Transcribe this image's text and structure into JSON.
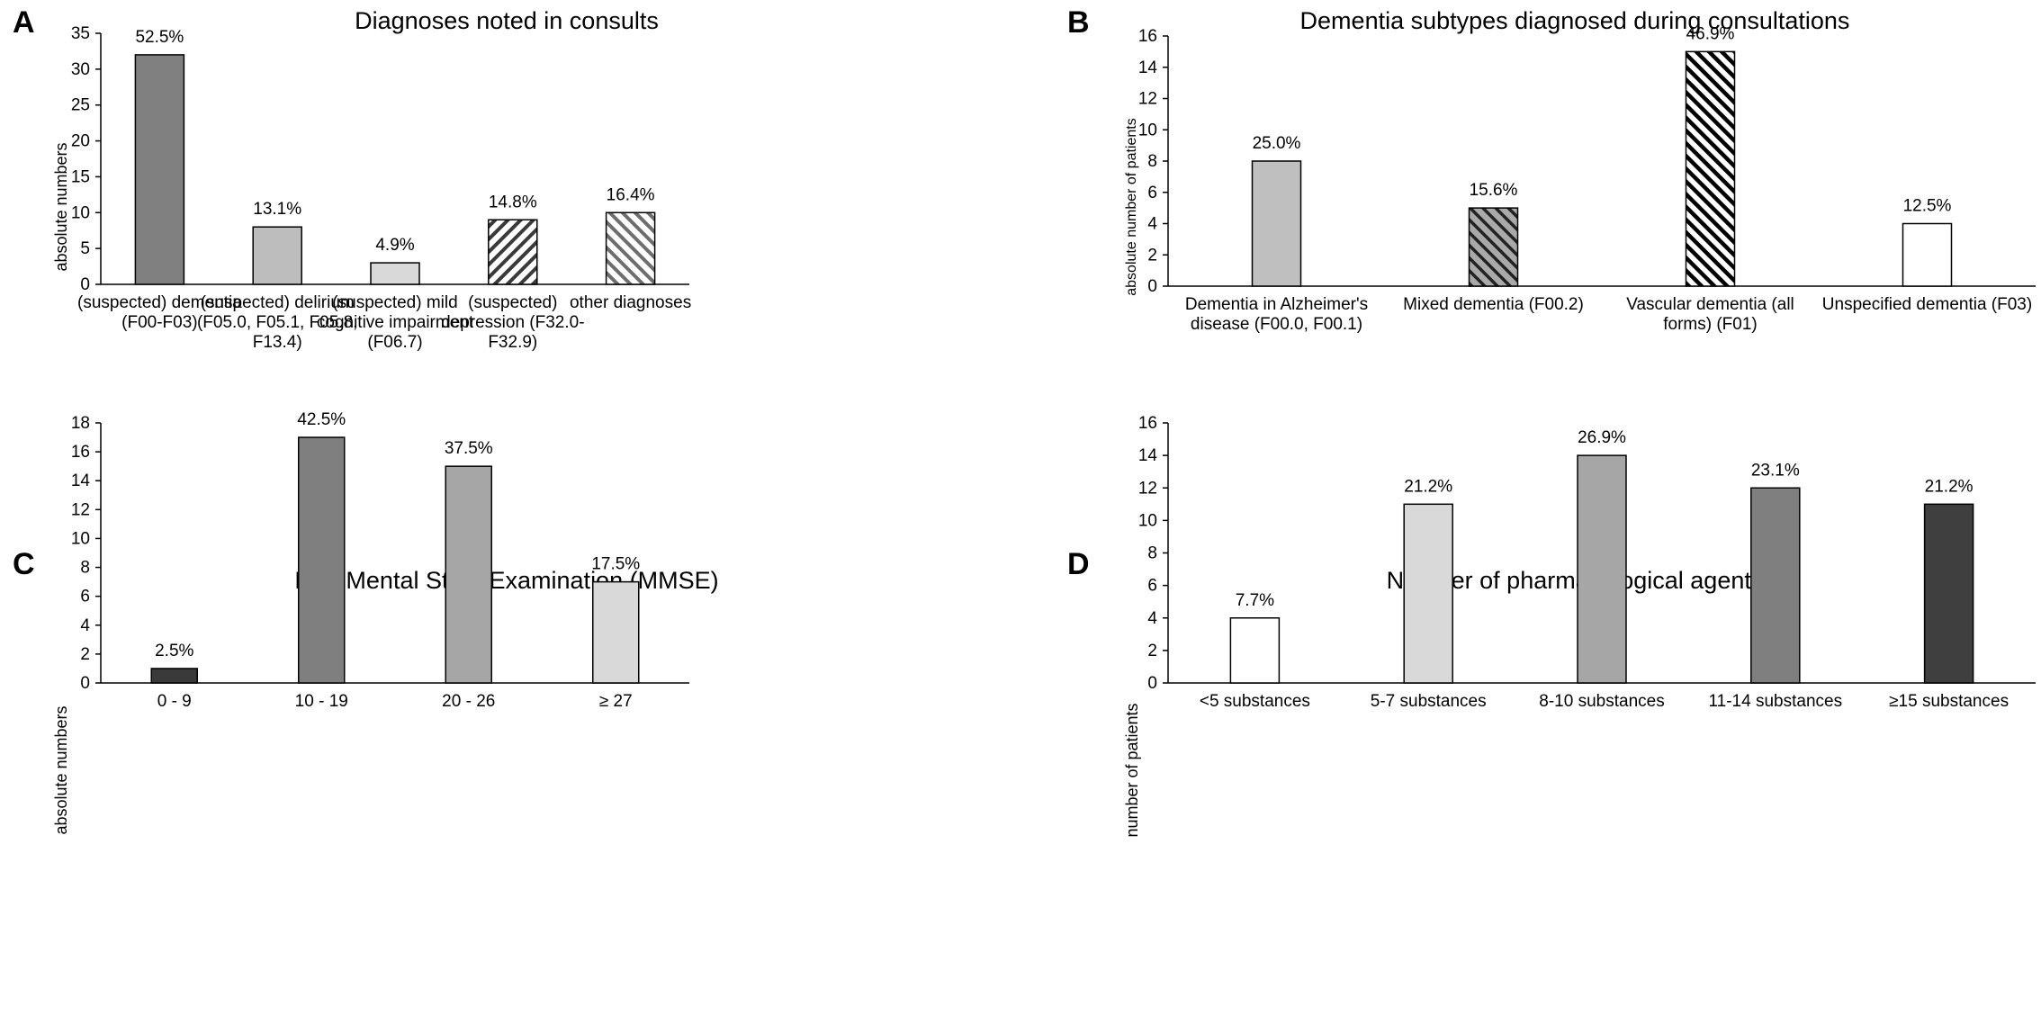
{
  "chart_data": [
    {
      "panel": "A",
      "type": "bar",
      "title": "Diagnoses noted in consults",
      "xlabel": "",
      "ylabel": "absolute numbers",
      "ylim": [
        0,
        35
      ],
      "yticks": [
        0,
        5,
        10,
        15,
        20,
        25,
        30,
        35
      ],
      "categories": [
        [
          "(suspected) dementia",
          "(F00-F03)"
        ],
        [
          "(suspected) delirium",
          "(F05.0, F05.1, F05.8,",
          "F13.4)"
        ],
        [
          "(suspected) mild",
          "cognitive impairment",
          "(F06.7)"
        ],
        [
          "(suspected)",
          "depression (F32.0-",
          "F32.9)"
        ],
        [
          "other diagnoses"
        ]
      ],
      "values": [
        32,
        8,
        3,
        9,
        10
      ],
      "labels": [
        "52.5%",
        "13.1%",
        "4.9%",
        "14.8%",
        "16.4%"
      ],
      "fills": [
        "solid:#808080",
        "solid:#bdbdbd",
        "solid:#d9d9d9",
        "hatch:#3a3a3a",
        "hatch:#6e6e6e"
      ]
    },
    {
      "panel": "B",
      "type": "bar",
      "title": "Dementia subtypes diagnosed during consultations",
      "xlabel": "",
      "ylabel": "absolute number of patients",
      "ylim": [
        0,
        16
      ],
      "yticks": [
        0,
        2,
        4,
        6,
        8,
        10,
        12,
        14,
        16
      ],
      "categories": [
        [
          "Dementia in Alzheimer's",
          "disease (F00.0, F00.1)"
        ],
        [
          "Mixed dementia (F00.2)"
        ],
        [
          "Vascular dementia (all",
          "forms) (F01)"
        ],
        [
          "Unspecified dementia (F03)"
        ]
      ],
      "values": [
        8,
        5,
        15,
        4
      ],
      "labels": [
        "25.0%",
        "15.6%",
        "46.9%",
        "12.5%"
      ],
      "fills": [
        "solid:#bfbfbf",
        "hatchbg:#a9a9a9",
        "hatch:#000000",
        "solid:#ffffff"
      ]
    },
    {
      "panel": "C",
      "type": "bar",
      "title": "Mini Mental State Examination (MMSE)",
      "xlabel": "",
      "ylabel": "absolute numbers",
      "ylim": [
        0,
        18
      ],
      "yticks": [
        0,
        2,
        4,
        6,
        8,
        10,
        12,
        14,
        16,
        18
      ],
      "categories": [
        [
          "0 - 9"
        ],
        [
          "10 - 19"
        ],
        [
          "20 - 26"
        ],
        [
          "≥ 27"
        ]
      ],
      "values": [
        1,
        17,
        15,
        7
      ],
      "labels": [
        "2.5%",
        "42.5%",
        "37.5%",
        "17.5%"
      ],
      "fills": [
        "solid:#3a3a3a",
        "solid:#7f7f7f",
        "solid:#a6a6a6",
        "solid:#d9d9d9"
      ]
    },
    {
      "panel": "D",
      "type": "bar",
      "title": "Number of pharmacological agents",
      "xlabel": "",
      "ylabel": "number of patients",
      "ylim": [
        0,
        16
      ],
      "yticks": [
        0,
        2,
        4,
        6,
        8,
        10,
        12,
        14,
        16
      ],
      "categories": [
        [
          "<5 substances"
        ],
        [
          "5-7 substances"
        ],
        [
          "8-10 substances"
        ],
        [
          "11-14 substances"
        ],
        [
          "≥15 substances"
        ]
      ],
      "values": [
        4,
        11,
        14,
        12,
        11
      ],
      "labels": [
        "7.7%",
        "21.2%",
        "26.9%",
        "23.1%",
        "21.2%"
      ],
      "fills": [
        "solid:#ffffff",
        "solid:#d9d9d9",
        "solid:#a6a6a6",
        "solid:#7f7f7f",
        "solid:#3f3f3f"
      ]
    }
  ]
}
